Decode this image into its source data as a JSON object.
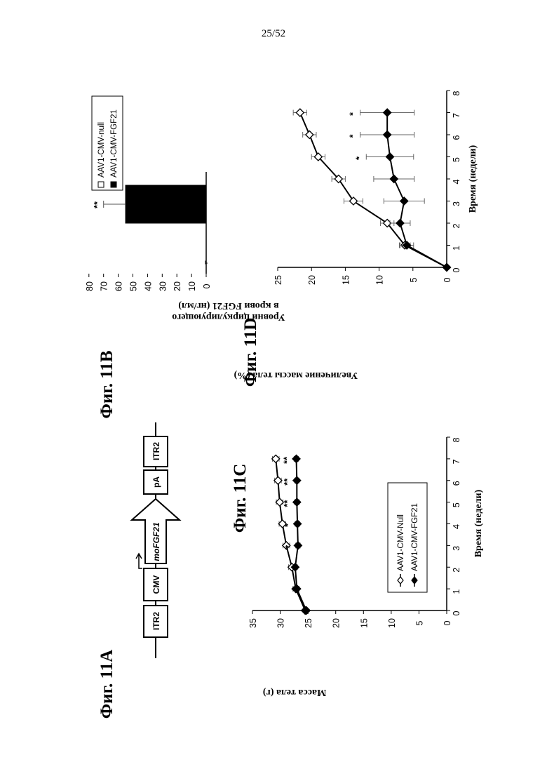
{
  "page": {
    "number": "25/52"
  },
  "figures": {
    "a": {
      "label": "Фиг. 11A",
      "elements": [
        "ITR2",
        "CMV",
        "moFGF21",
        "pA",
        "ITR2"
      ]
    },
    "b": {
      "label": "Фиг. 11B"
    },
    "c": {
      "label": "Фиг. 11C"
    },
    "d": {
      "label": "Фиг. 11D"
    }
  },
  "chart_data": [
    {
      "id": "fig11b",
      "type": "bar",
      "ylabel": [
        "Уровни циркулирующего",
        "в крови FGF21 (нг/мл)"
      ],
      "ylim": [
        0,
        80
      ],
      "yticks": [
        0,
        10,
        20,
        30,
        40,
        50,
        60,
        70,
        80
      ],
      "series": [
        {
          "name": "AAV1-CMV-null",
          "fill": "#ffffff",
          "value": 0.5,
          "error": 0
        },
        {
          "name": "AAV1-CMV-FGF21",
          "fill": "#000000",
          "value": 55,
          "error": 15,
          "annotation": "**"
        }
      ]
    },
    {
      "id": "fig11c",
      "type": "line",
      "xlabel": "Время (недели)",
      "ylabel": "Масса тела (г)",
      "xlim": [
        0,
        8
      ],
      "ylim": [
        0,
        35
      ],
      "xticks": [
        0,
        1,
        2,
        3,
        4,
        5,
        6,
        7,
        8
      ],
      "yticks": [
        0,
        5,
        10,
        15,
        20,
        25,
        30,
        35
      ],
      "legend_position": "bottom-right",
      "series": [
        {
          "name": "AAV1-CMV-Null",
          "marker": "open-diamond",
          "x": [
            0,
            1,
            2,
            3,
            4,
            5,
            6,
            7
          ],
          "y": [
            25.5,
            27.2,
            27.9,
            28.9,
            29.6,
            30.1,
            30.4,
            30.8
          ],
          "err": [
            0,
            0.5,
            0.6,
            0.6,
            0.6,
            0.6,
            0.6,
            0.6
          ]
        },
        {
          "name": "AAV1-CMV-FGF21",
          "marker": "filled-diamond",
          "x": [
            0,
            1,
            2,
            3,
            4,
            5,
            6,
            7
          ],
          "y": [
            25.3,
            27.0,
            27.3,
            26.8,
            26.9,
            27.0,
            27.0,
            27.1
          ],
          "err": [
            0,
            0.4,
            0.4,
            0.4,
            0.4,
            0.4,
            0.4,
            0.4
          ]
        }
      ],
      "annotations": [
        {
          "x": 3,
          "text": "*"
        },
        {
          "x": 4,
          "text": "*"
        },
        {
          "x": 5,
          "text": "**"
        },
        {
          "x": 6,
          "text": "**"
        },
        {
          "x": 7,
          "text": "**"
        }
      ]
    },
    {
      "id": "fig11d",
      "type": "line",
      "xlabel": "Время (недели)",
      "ylabel": "Увеличение массы тела (%)",
      "xlim": [
        0,
        8
      ],
      "ylim": [
        0,
        25
      ],
      "xticks": [
        0,
        1,
        2,
        3,
        4,
        5,
        6,
        7,
        8
      ],
      "yticks": [
        0,
        5,
        10,
        15,
        20,
        25
      ],
      "series": [
        {
          "name": "AAV1-CMV-Null",
          "marker": "open-diamond",
          "x": [
            0,
            1,
            2,
            3,
            4,
            5,
            6,
            7
          ],
          "y": [
            0,
            6.2,
            8.8,
            13.8,
            16.0,
            19.0,
            20.3,
            21.7
          ],
          "err": [
            0,
            0.8,
            1.0,
            1.4,
            1.0,
            1.0,
            1.0,
            1.0
          ]
        },
        {
          "name": "AAV1-CMV-FGF21",
          "marker": "filled-diamond",
          "x": [
            0,
            1,
            2,
            3,
            4,
            5,
            6,
            7
          ],
          "y": [
            0,
            5.9,
            6.9,
            6.3,
            7.8,
            8.4,
            8.8,
            8.8
          ],
          "err": [
            0,
            1.0,
            1.5,
            3.0,
            3.0,
            3.5,
            4.0,
            4.0
          ]
        }
      ],
      "annotations": [
        {
          "x": 5,
          "text": "*"
        },
        {
          "x": 6,
          "text": "*"
        },
        {
          "x": 7,
          "text": "*"
        }
      ]
    }
  ]
}
